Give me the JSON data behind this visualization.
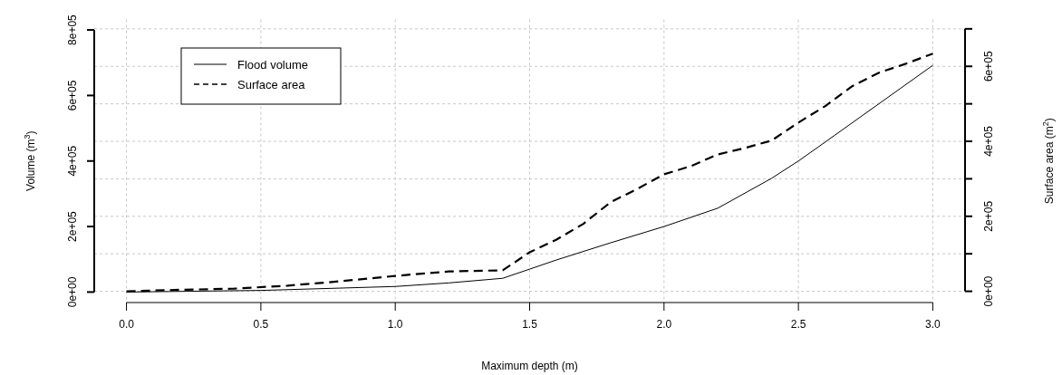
{
  "chart_data": {
    "type": "line",
    "xlabel": "Maximum depth (m)",
    "ylabel": "Volume (m$^{3}$)",
    "y2label": "Surface area (m$^{2}$)",
    "xlim": [
      -0.12,
      3.12
    ],
    "xticks": [
      {
        "value": 0,
        "label": "0.0"
      },
      {
        "value": 0.5,
        "label": "0.5"
      },
      {
        "value": 1,
        "label": "1.0"
      },
      {
        "value": 1.5,
        "label": "1.5"
      },
      {
        "value": 2,
        "label": "2.0"
      },
      {
        "value": 2.5,
        "label": "2.5"
      },
      {
        "value": 3,
        "label": "3.0"
      }
    ],
    "ylim": [
      -32000,
      832000
    ],
    "yticks": [
      {
        "value": 0,
        "label": "0e+00"
      },
      {
        "value": 200000,
        "label": "2e+05"
      },
      {
        "value": 400000,
        "label": "4e+05"
      },
      {
        "value": 600000,
        "label": "6e+05"
      },
      {
        "value": 800000,
        "label": "8e+05"
      }
    ],
    "y2lim": [
      -30000,
      725000
    ],
    "y2ticks": [
      {
        "value": 0,
        "label": "0e+00"
      },
      {
        "value": 100000,
        "label": null
      },
      {
        "value": 200000,
        "label": "2e+05"
      },
      {
        "value": 300000,
        "label": null
      },
      {
        "value": 400000,
        "label": "4e+05"
      },
      {
        "value": 500000,
        "label": null
      },
      {
        "value": 600000,
        "label": "6e+05"
      },
      {
        "value": 700000,
        "label": null
      }
    ],
    "grid": true,
    "legend": "top left",
    "series": [
      {
        "name": "Flood volume",
        "color": "#000000",
        "line_style": "solid",
        "x": [
          0,
          0.5,
          1,
          1.2,
          1.4,
          1.5,
          1.6,
          1.8,
          2,
          2.2,
          2.4,
          2.5,
          2.6,
          2.8,
          3
        ],
        "values": [
          0,
          5000,
          17000,
          28000,
          42000,
          70000,
          98000,
          150000,
          200000,
          256000,
          347000,
          400000,
          458000,
          575000,
          692000
        ]
      },
      {
        "name": "Surface area",
        "color": "#000000",
        "line_style": "dashed",
        "axis": "y2",
        "x": [
          0,
          0.2,
          0.4,
          0.6,
          0.8,
          1,
          1.2,
          1.4,
          1.5,
          1.6,
          1.7,
          1.8,
          1.9,
          2,
          2.1,
          2.2,
          2.3,
          2.4,
          2.5,
          2.6,
          2.7,
          2.8,
          2.9,
          3
        ],
        "values": [
          0,
          4000,
          7000,
          15000,
          27000,
          41000,
          53000,
          56000,
          104000,
          138000,
          180000,
          237000,
          273000,
          312000,
          334000,
          365000,
          382000,
          402000,
          450000,
          494000,
          547000,
          583000,
          607000,
          634000
        ]
      }
    ]
  }
}
